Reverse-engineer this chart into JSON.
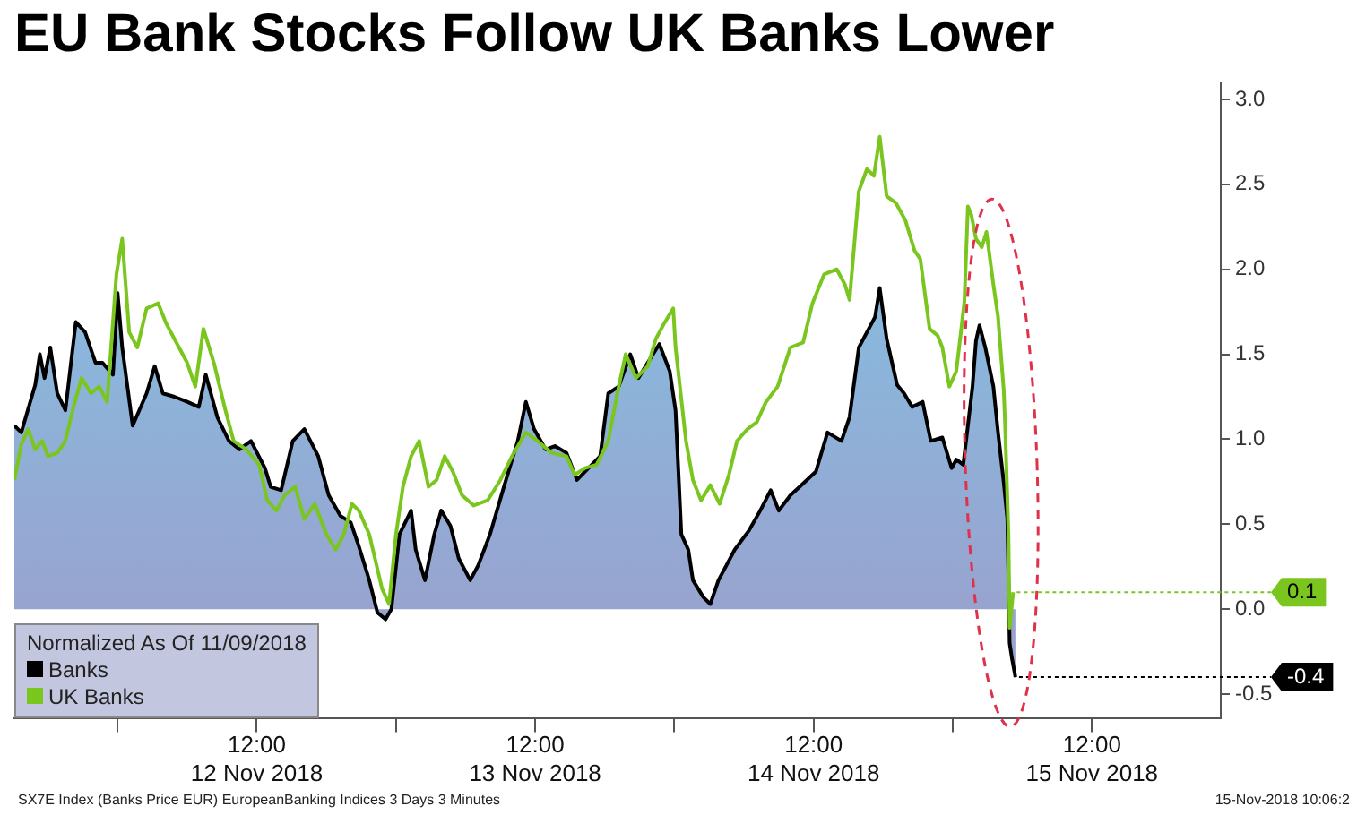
{
  "chart_data": {
    "type": "line",
    "title": "EU Bank Stocks Follow UK Banks Lower",
    "legend_title": "Normalized As Of 11/09/2018",
    "legend": "bottom left",
    "grid": false,
    "marker": "none",
    "line_style": "solid",
    "xlim": [
      "2018-11-11T15:06",
      "2018-11-15T23:06"
    ],
    "ylim": [
      -0.64,
      3.1
    ],
    "xticks": [
      {
        "value": "2018-11-12T00:00",
        "label": null
      },
      {
        "value": "2018-11-12T12:00",
        "label": "12:00\n12 Nov 2018"
      },
      {
        "value": "2018-11-13T00:00",
        "label": null
      },
      {
        "value": "2018-11-13T12:00",
        "label": "12:00\n13 Nov 2018"
      },
      {
        "value": "2018-11-14T00:00",
        "label": null
      },
      {
        "value": "2018-11-14T12:00",
        "label": "12:00\n14 Nov 2018"
      },
      {
        "value": "2018-11-15T00:00",
        "label": null
      },
      {
        "value": "2018-11-15T12:00",
        "label": "12:00\n15 Nov 2018"
      }
    ],
    "yticks": [
      -0.5,
      {
        "value": 0,
        "label": "0.0"
      },
      0.5,
      {
        "value": 1,
        "label": "1.0"
      },
      1.5,
      {
        "value": 2,
        "label": "2.0"
      },
      2.5,
      {
        "value": 3,
        "label": "3.0"
      }
    ],
    "series": [
      {
        "name": "Banks",
        "type": "area",
        "color": "#000000",
        "x": [
          "2018-11-11T15:06",
          "2018-11-11T15:42",
          "2018-11-11T16:54",
          "2018-11-11T17:18",
          "2018-11-11T17:42",
          "2018-11-11T18:12",
          "2018-11-11T18:48",
          "2018-11-11T19:30",
          "2018-11-11T20:24",
          "2018-11-11T21:12",
          "2018-11-11T22:06",
          "2018-11-11T22:42",
          "2018-11-11T23:36",
          "2018-11-12T00:00",
          "2018-11-12T00:24",
          "2018-11-12T01:18",
          "2018-11-12T02:30",
          "2018-11-12T03:12",
          "2018-11-12T03:54",
          "2018-11-12T04:54",
          "2018-11-12T06:00",
          "2018-11-12T07:00",
          "2018-11-12T07:36",
          "2018-11-12T08:36",
          "2018-11-12T09:36",
          "2018-11-12T10:30",
          "2018-11-12T11:30",
          "2018-11-12T12:42",
          "2018-11-12T13:12",
          "2018-11-12T14:06",
          "2018-11-12T15:06",
          "2018-11-12T16:06",
          "2018-11-12T17:18",
          "2018-11-12T18:12",
          "2018-11-12T19:12",
          "2018-11-12T20:06",
          "2018-11-12T20:48",
          "2018-11-12T21:42",
          "2018-11-12T22:24",
          "2018-11-12T23:06",
          "2018-11-12T23:36",
          "2018-11-13T00:18",
          "2018-11-13T01:18",
          "2018-11-13T01:42",
          "2018-11-13T02:30",
          "2018-11-13T03:18",
          "2018-11-13T03:54",
          "2018-11-13T04:42",
          "2018-11-13T05:24",
          "2018-11-13T06:24",
          "2018-11-13T07:06",
          "2018-11-13T08:06",
          "2018-11-13T09:18",
          "2018-11-13T10:30",
          "2018-11-13T11:12",
          "2018-11-13T11:54",
          "2018-11-13T12:54",
          "2018-11-13T13:42",
          "2018-11-13T14:42",
          "2018-11-13T15:36",
          "2018-11-13T16:36",
          "2018-11-13T17:36",
          "2018-11-13T18:18",
          "2018-11-13T19:12",
          "2018-11-13T20:12",
          "2018-11-13T20:54",
          "2018-11-13T21:42",
          "2018-11-13T22:42",
          "2018-11-13T23:36",
          "2018-11-14T00:06",
          "2018-11-14T00:36",
          "2018-11-14T01:12",
          "2018-11-14T01:36",
          "2018-11-14T02:30",
          "2018-11-14T03:06",
          "2018-11-14T03:48",
          "2018-11-14T04:30",
          "2018-11-14T05:12",
          "2018-11-14T06:24",
          "2018-11-14T07:24",
          "2018-11-14T08:18",
          "2018-11-14T09:00",
          "2018-11-14T10:00",
          "2018-11-14T10:48",
          "2018-11-14T12:12",
          "2018-11-14T13:12",
          "2018-11-14T14:24",
          "2018-11-14T15:06",
          "2018-11-14T15:54",
          "2018-11-14T16:36",
          "2018-11-14T17:18",
          "2018-11-14T17:42",
          "2018-11-14T18:18",
          "2018-11-14T19:12",
          "2018-11-14T19:48",
          "2018-11-14T20:30",
          "2018-11-14T21:24",
          "2018-11-14T22:06",
          "2018-11-14T23:06",
          "2018-11-14T23:54",
          "2018-11-15T00:18",
          "2018-11-15T00:54",
          "2018-11-15T01:18",
          "2018-11-15T01:42",
          "2018-11-15T02:00",
          "2018-11-15T02:18",
          "2018-11-15T02:48",
          "2018-11-15T03:30",
          "2018-11-15T03:54",
          "2018-11-15T04:24",
          "2018-11-15T04:42",
          "2018-11-15T04:48",
          "2018-11-15T04:54",
          "2018-11-15T05:06",
          "2018-11-15T05:24"
        ],
        "values": [
          1.08,
          1.04,
          1.32,
          1.5,
          1.36,
          1.54,
          1.27,
          1.17,
          1.69,
          1.63,
          1.45,
          1.45,
          1.38,
          1.86,
          1.54,
          1.08,
          1.27,
          1.43,
          1.27,
          1.25,
          1.22,
          1.19,
          1.38,
          1.13,
          0.99,
          0.94,
          0.99,
          0.83,
          0.72,
          0.7,
          0.99,
          1.06,
          0.9,
          0.67,
          0.55,
          0.51,
          0.37,
          0.17,
          -0.02,
          -0.06,
          0.0,
          0.44,
          0.58,
          0.35,
          0.17,
          0.44,
          0.58,
          0.49,
          0.3,
          0.17,
          0.26,
          0.44,
          0.72,
          0.99,
          1.22,
          1.06,
          0.94,
          0.96,
          0.92,
          0.76,
          0.83,
          0.9,
          1.27,
          1.31,
          1.5,
          1.36,
          1.45,
          1.56,
          1.4,
          1.17,
          0.44,
          0.35,
          0.17,
          0.07,
          0.03,
          0.17,
          0.26,
          0.35,
          0.46,
          0.58,
          0.7,
          0.58,
          0.67,
          0.72,
          0.81,
          1.04,
          0.99,
          1.13,
          1.54,
          1.63,
          1.72,
          1.89,
          1.59,
          1.32,
          1.27,
          1.19,
          1.22,
          0.99,
          1.01,
          0.83,
          0.88,
          0.85,
          1.08,
          1.31,
          1.58,
          1.67,
          1.54,
          1.31,
          1.04,
          0.74,
          0.53,
          0.17,
          -0.2,
          -0.29,
          -0.4
        ],
        "value_labels": [
          null,
          null,
          null,
          null,
          null,
          null,
          null,
          null,
          null,
          null,
          null,
          null,
          null,
          null,
          null,
          null,
          null,
          null,
          null,
          null,
          null,
          null,
          null,
          null,
          null,
          null,
          null,
          null,
          null,
          null,
          null,
          null,
          null,
          null,
          null,
          null,
          null,
          null,
          null,
          null,
          null,
          null,
          null,
          null,
          null,
          null,
          null,
          null,
          null,
          null,
          null,
          null,
          null,
          null,
          null,
          null,
          null,
          null,
          null,
          null,
          null,
          null,
          null,
          null,
          null,
          null,
          null,
          null,
          null,
          null,
          null,
          null,
          null,
          null,
          null,
          null,
          null,
          null,
          null,
          null,
          null,
          null,
          null,
          null,
          null,
          null,
          null,
          null,
          null,
          null,
          null,
          null,
          null,
          null,
          null,
          null,
          null,
          null,
          null,
          null,
          null,
          null,
          null,
          null,
          null,
          null,
          null,
          null,
          null,
          null,
          null,
          null,
          null,
          null,
          "-0.4"
        ]
      },
      {
        "name": "UK Banks",
        "type": "line",
        "color": "#7ac61e",
        "x": [
          "2018-11-11T15:06",
          "2018-11-11T15:42",
          "2018-11-11T16:18",
          "2018-11-11T16:54",
          "2018-11-11T17:30",
          "2018-11-11T18:00",
          "2018-11-11T18:48",
          "2018-11-11T19:30",
          "2018-11-11T20:12",
          "2018-11-11T20:54",
          "2018-11-11T21:42",
          "2018-11-11T22:24",
          "2018-11-11T23:06",
          "2018-11-11T23:54",
          "2018-11-12T00:24",
          "2018-11-12T01:00",
          "2018-11-12T01:42",
          "2018-11-12T02:30",
          "2018-11-12T03:30",
          "2018-11-12T04:12",
          "2018-11-12T04:54",
          "2018-11-12T06:00",
          "2018-11-12T06:42",
          "2018-11-12T07:24",
          "2018-11-12T08:18",
          "2018-11-12T09:18",
          "2018-11-12T10:00",
          "2018-11-12T11:06",
          "2018-11-12T12:12",
          "2018-11-12T12:54",
          "2018-11-12T13:42",
          "2018-11-12T14:24",
          "2018-11-12T15:18",
          "2018-11-12T16:06",
          "2018-11-12T17:00",
          "2018-11-12T18:00",
          "2018-11-12T18:48",
          "2018-11-12T19:30",
          "2018-11-12T20:12",
          "2018-11-12T20:48",
          "2018-11-12T21:42",
          "2018-11-12T22:48",
          "2018-11-12T23:24",
          "2018-11-13T00:00",
          "2018-11-13T00:36",
          "2018-11-13T01:18",
          "2018-11-13T02:00",
          "2018-11-13T02:48",
          "2018-11-13T03:30",
          "2018-11-13T04:12",
          "2018-11-13T04:54",
          "2018-11-13T05:42",
          "2018-11-13T06:42",
          "2018-11-13T07:54",
          "2018-11-13T09:00",
          "2018-11-13T10:00",
          "2018-11-13T11:12",
          "2018-11-13T12:12",
          "2018-11-13T13:24",
          "2018-11-13T14:42",
          "2018-11-13T15:24",
          "2018-11-13T16:18",
          "2018-11-13T17:18",
          "2018-11-13T18:18",
          "2018-11-13T19:12",
          "2018-11-13T19:48",
          "2018-11-13T20:42",
          "2018-11-13T21:42",
          "2018-11-13T22:24",
          "2018-11-13T23:06",
          "2018-11-13T23:54",
          "2018-11-14T00:06",
          "2018-11-14T01:00",
          "2018-11-14T01:36",
          "2018-11-14T02:18",
          "2018-11-14T03:06",
          "2018-11-14T03:54",
          "2018-11-14T04:42",
          "2018-11-14T05:24",
          "2018-11-14T06:18",
          "2018-11-14T07:06",
          "2018-11-14T07:54",
          "2018-11-14T08:54",
          "2018-11-14T10:00",
          "2018-11-14T11:06",
          "2018-11-14T11:54",
          "2018-11-14T12:54",
          "2018-11-14T14:00",
          "2018-11-14T14:42",
          "2018-11-14T15:06",
          "2018-11-14T15:54",
          "2018-11-14T16:36",
          "2018-11-14T17:12",
          "2018-11-14T17:42",
          "2018-11-14T18:18",
          "2018-11-14T19:06",
          "2018-11-14T19:54",
          "2018-11-14T20:42",
          "2018-11-14T21:12",
          "2018-11-14T22:00",
          "2018-11-14T22:42",
          "2018-11-14T23:06",
          "2018-11-14T23:42",
          "2018-11-15T00:18",
          "2018-11-15T00:42",
          "2018-11-15T01:00",
          "2018-11-15T01:18",
          "2018-11-15T01:36",
          "2018-11-15T02:00",
          "2018-11-15T02:30",
          "2018-11-15T02:54",
          "2018-11-15T03:30",
          "2018-11-15T03:54",
          "2018-11-15T04:24",
          "2018-11-15T04:30",
          "2018-11-15T04:48",
          "2018-11-15T04:54",
          "2018-11-15T05:12"
        ],
        "values": [
          0.76,
          0.97,
          1.06,
          0.94,
          0.99,
          0.9,
          0.92,
          0.99,
          1.19,
          1.36,
          1.27,
          1.31,
          1.22,
          1.97,
          2.18,
          1.63,
          1.54,
          1.77,
          1.8,
          1.68,
          1.59,
          1.45,
          1.31,
          1.65,
          1.45,
          1.17,
          0.99,
          0.94,
          0.85,
          0.64,
          0.58,
          0.67,
          0.72,
          0.53,
          0.62,
          0.44,
          0.35,
          0.44,
          0.62,
          0.58,
          0.44,
          0.12,
          0.03,
          0.44,
          0.72,
          0.9,
          0.99,
          0.72,
          0.76,
          0.9,
          0.81,
          0.67,
          0.61,
          0.64,
          0.76,
          0.9,
          1.04,
          0.99,
          0.92,
          0.9,
          0.79,
          0.83,
          0.85,
          0.99,
          1.31,
          1.5,
          1.36,
          1.43,
          1.59,
          1.68,
          1.77,
          1.54,
          0.99,
          0.76,
          0.64,
          0.73,
          0.62,
          0.79,
          0.99,
          1.06,
          1.1,
          1.22,
          1.31,
          1.54,
          1.57,
          1.8,
          1.97,
          2.0,
          1.91,
          1.82,
          2.46,
          2.59,
          2.55,
          2.78,
          2.43,
          2.39,
          2.29,
          2.11,
          2.06,
          1.65,
          1.61,
          1.54,
          1.31,
          1.4,
          1.63,
          1.81,
          2.37,
          2.32,
          2.18,
          2.13,
          2.22,
          1.91,
          1.72,
          1.28,
          1.1,
          0.44,
          -0.11,
          0.1
        ],
        "value_labels": [
          null,
          null,
          null,
          null,
          null,
          null,
          null,
          null,
          null,
          null,
          null,
          null,
          null,
          null,
          null,
          null,
          null,
          null,
          null,
          null,
          null,
          null,
          null,
          null,
          null,
          null,
          null,
          null,
          null,
          null,
          null,
          null,
          null,
          null,
          null,
          null,
          null,
          null,
          null,
          null,
          null,
          null,
          null,
          null,
          null,
          null,
          null,
          null,
          null,
          null,
          null,
          null,
          null,
          null,
          null,
          null,
          null,
          null,
          null,
          null,
          null,
          null,
          null,
          null,
          null,
          null,
          null,
          null,
          null,
          null,
          null,
          null,
          null,
          null,
          null,
          null,
          null,
          null,
          null,
          null,
          null,
          null,
          null,
          null,
          null,
          null,
          null,
          null,
          null,
          null,
          null,
          null,
          null,
          null,
          null,
          null,
          null,
          null,
          null,
          null,
          null,
          null,
          null,
          null,
          null,
          null,
          null,
          null,
          null,
          null,
          null,
          null,
          null,
          null,
          null,
          null,
          null,
          "0.1"
        ]
      }
    ],
    "annotations": [
      "SX7E Index (Banks Price EUR) EuropeanBanking Indices 3 Days 3 Minutes",
      "15-Nov-2018 10:06:2"
    ]
  }
}
